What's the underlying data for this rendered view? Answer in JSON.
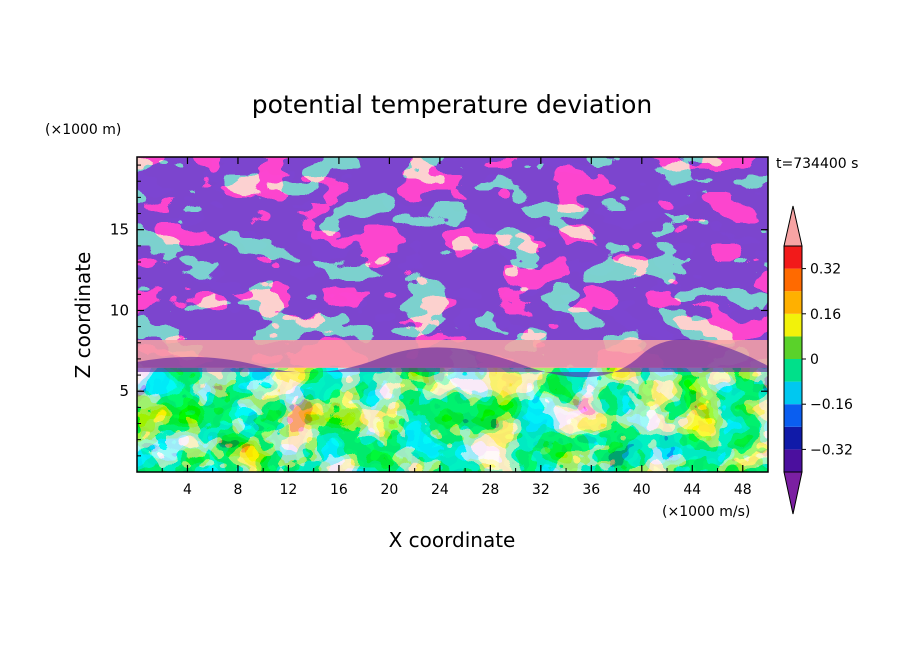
{
  "chart_data": {
    "type": "heatmap",
    "title": "potential temperature deviation",
    "xlabel": "X coordinate",
    "ylabel": "Z coordinate",
    "x_unit": "(×1000 m/s)",
    "y_unit": "(×1000 m)",
    "time_label": "t=734400 s",
    "xlim": [
      0,
      50
    ],
    "ylim": [
      0,
      19.5
    ],
    "x_ticks": [
      4,
      8,
      12,
      16,
      20,
      24,
      28,
      32,
      36,
      40,
      44,
      48
    ],
    "y_ticks": [
      5,
      10,
      15
    ],
    "colorbar": {
      "levels": [
        -0.4,
        -0.32,
        -0.24,
        -0.16,
        -0.08,
        0,
        0.08,
        0.16,
        0.24,
        0.32,
        0.4
      ],
      "tick_labels": [
        "0.32",
        "0.16",
        "0",
        "−0.16",
        "−0.32"
      ],
      "tick_values": [
        0.32,
        0.16,
        0,
        -0.16,
        -0.32
      ],
      "extend": "both",
      "colors": {
        "under": "#7b1fa2",
        "bands": [
          "#4b0f9e",
          "#101aa8",
          "#0a5ef0",
          "#00c8f0",
          "#00e08a",
          "#5ad22a",
          "#f2f20a",
          "#ffb000",
          "#ff6a00",
          "#f21a1a"
        ],
        "over": "#f7a3a3"
      }
    }
  }
}
